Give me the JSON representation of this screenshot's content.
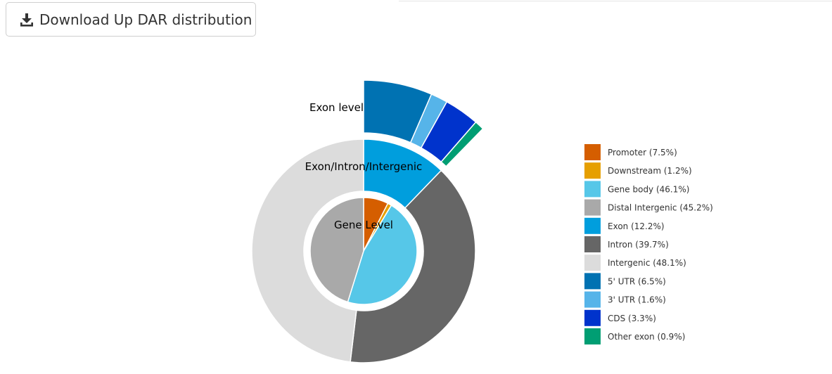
{
  "toolbar": {
    "download_label": "Download Up DAR distribution",
    "download_icon": "download-icon"
  },
  "chart_data": {
    "type": "pie",
    "subtype": "nested-donut",
    "rings": [
      {
        "name": "Gene Level",
        "label": "Gene Level",
        "slices": [
          {
            "label": "Promoter",
            "value": 7.5,
            "color": "#D55E00"
          },
          {
            "label": "Downstream",
            "value": 1.2,
            "color": "#E69F00"
          },
          {
            "label": "Gene body",
            "value": 46.1,
            "color": "#56C7E8"
          },
          {
            "label": "Distal Intergenic",
            "value": 45.2,
            "color": "#A9A9A9"
          }
        ]
      },
      {
        "name": "Exon/Intron/Intergenic",
        "label": "Exon/Intron/Intergenic",
        "slices": [
          {
            "label": "Exon",
            "value": 12.2,
            "color": "#009EDD"
          },
          {
            "label": "Intron",
            "value": 39.7,
            "color": "#666666"
          },
          {
            "label": "Intergenic",
            "value": 48.1,
            "color": "#DCDCDC"
          }
        ]
      },
      {
        "name": "Exon level",
        "label": "Exon level",
        "slices": [
          {
            "label": "5' UTR",
            "value": 6.5,
            "color": "#0072B2"
          },
          {
            "label": "3' UTR",
            "value": 1.6,
            "color": "#56B4E9"
          },
          {
            "label": "CDS",
            "value": 3.3,
            "color": "#0033CC"
          },
          {
            "label": "Other exon",
            "value": 0.9,
            "color": "#009E73"
          }
        ]
      }
    ],
    "legend": {
      "position": "right",
      "items": [
        {
          "label": "Promoter (7.5%)",
          "color": "#D55E00"
        },
        {
          "label": "Downstream (1.2%)",
          "color": "#E69F00"
        },
        {
          "label": "Gene body (46.1%)",
          "color": "#56C7E8"
        },
        {
          "label": "Distal Intergenic (45.2%)",
          "color": "#A9A9A9"
        },
        {
          "label": "Exon (12.2%)",
          "color": "#009EDD"
        },
        {
          "label": "Intron (39.7%)",
          "color": "#666666"
        },
        {
          "label": "Intergenic (48.1%)",
          "color": "#DCDCDC"
        },
        {
          "label": "5' UTR (6.5%)",
          "color": "#0072B2"
        },
        {
          "label": "3' UTR (1.6%)",
          "color": "#56B4E9"
        },
        {
          "label": "CDS (3.3%)",
          "color": "#0033CC"
        },
        {
          "label": "Other exon (0.9%)",
          "color": "#009E73"
        }
      ]
    }
  }
}
